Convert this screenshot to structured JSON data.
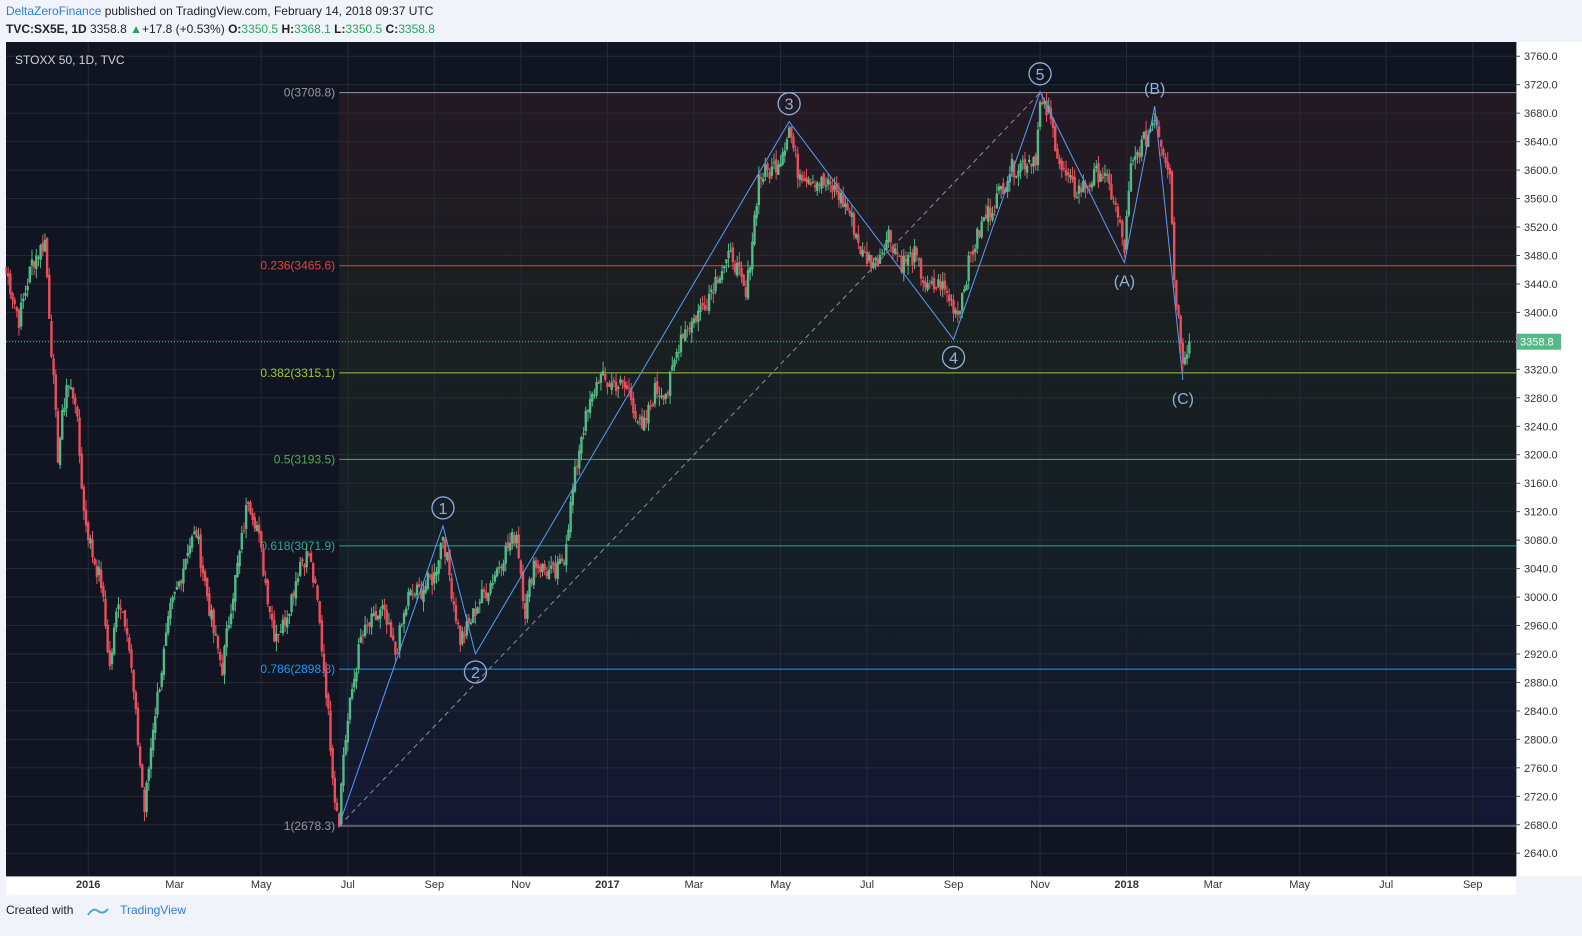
{
  "header": {
    "author": "DeltaZeroFinance",
    "published_text": "published on TradingView.com, February 14, 2018 09:37 UTC",
    "symbol": "TVC:SX5E, 1D",
    "last": "3358.8",
    "change": "+17.8 (+0.53%)",
    "o_label": "O:",
    "o": "3350.5",
    "h_label": "H:",
    "h": "3368.1",
    "l_label": "L:",
    "l": "3350.5",
    "c_label": "C:",
    "c": "3358.8"
  },
  "footer": {
    "created_with": "Created with",
    "brand": "TradingView"
  },
  "chart_data": {
    "type": "line",
    "title": "STOXX 50, 1D, TVC",
    "price_axis_ticks": [
      2640,
      2680,
      2720,
      2760,
      2800,
      2840,
      2880,
      2920,
      2960,
      3000,
      3040,
      3080,
      3120,
      3160,
      3200,
      3240,
      3280,
      3320,
      3360,
      3400,
      3440,
      3480,
      3520,
      3560,
      3600,
      3640,
      3680,
      3720,
      3760
    ],
    "ylim": [
      2608,
      3780
    ],
    "time_axis_labels": [
      {
        "label": "2016",
        "t": 0.0
      },
      {
        "label": "Mar",
        "t": 2.0
      },
      {
        "label": "May",
        "t": 4.0
      },
      {
        "label": "Jul",
        "t": 6.0
      },
      {
        "label": "Sep",
        "t": 8.0
      },
      {
        "label": "Nov",
        "t": 10.0
      },
      {
        "label": "2017",
        "t": 12.0
      },
      {
        "label": "Mar",
        "t": 14.0
      },
      {
        "label": "May",
        "t": 16.0
      },
      {
        "label": "Jul",
        "t": 18.0
      },
      {
        "label": "Sep",
        "t": 20.0
      },
      {
        "label": "Nov",
        "t": 22.0
      },
      {
        "label": "2018",
        "t": 24.0
      },
      {
        "label": "Mar",
        "t": 26.0
      },
      {
        "label": "May",
        "t": 28.0
      },
      {
        "label": "Jul",
        "t": 30.0
      },
      {
        "label": "Sep",
        "t": 32.0
      }
    ],
    "xlim": [
      -1.9,
      33.0
    ],
    "last_price": {
      "value": 3358.8,
      "label": "3358.8"
    },
    "fib_levels": [
      {
        "ratio": "0",
        "value": 3708.8,
        "label": "0(3708.8)",
        "color": "#9598a1"
      },
      {
        "ratio": "0.236",
        "value": 3465.6,
        "label": "0.236(3465.6)",
        "color": "#e0443e"
      },
      {
        "ratio": "0.382",
        "value": 3315.1,
        "label": "0.382(3315.1)",
        "color": "#9cc93f"
      },
      {
        "ratio": "0.5",
        "value": 3193.5,
        "label": "0.5(3193.5)",
        "color": "#4caf50"
      },
      {
        "ratio": "0.618",
        "value": 3071.9,
        "label": "0.618(3071.9)",
        "color": "#22ab94"
      },
      {
        "ratio": "0.786",
        "value": 2898.8,
        "label": "0.786(2898.8)",
        "color": "#2196f3"
      },
      {
        "ratio": "1",
        "value": 2678.3,
        "label": "1(2678.3)",
        "color": "#9598a1"
      }
    ],
    "fib_start_t": 5.8,
    "wave_points": [
      {
        "label": "1",
        "t": 8.2,
        "value": 3100,
        "circled": true,
        "pos": "above"
      },
      {
        "label": "2",
        "t": 8.95,
        "value": 2920,
        "circled": true,
        "pos": "below"
      },
      {
        "label": "3",
        "t": 16.2,
        "value": 3668,
        "circled": true,
        "pos": "above"
      },
      {
        "label": "4",
        "t": 20.0,
        "value": 3362,
        "circled": true,
        "pos": "below"
      },
      {
        "label": "5",
        "t": 22.0,
        "value": 3710,
        "circled": true,
        "pos": "above"
      },
      {
        "label": "(A)",
        "t": 23.95,
        "value": 3470,
        "circled": false,
        "pos": "below"
      },
      {
        "label": "(B)",
        "t": 24.65,
        "value": 3690,
        "circled": false,
        "pos": "above"
      },
      {
        "label": "(C)",
        "t": 25.3,
        "value": 3305,
        "circled": false,
        "pos": "below"
      }
    ],
    "wave_start": {
      "t": 5.8,
      "value": 2680
    },
    "close_path": [
      [
        -1.9,
        3460
      ],
      [
        -1.6,
        3390
      ],
      [
        -1.3,
        3470
      ],
      [
        -1.0,
        3500
      ],
      [
        -0.9,
        3400
      ],
      [
        -0.7,
        3200
      ],
      [
        -0.5,
        3300
      ],
      [
        -0.3,
        3280
      ],
      [
        -0.1,
        3120
      ],
      [
        0.1,
        3060
      ],
      [
        0.3,
        3020
      ],
      [
        0.5,
        2900
      ],
      [
        0.7,
        3000
      ],
      [
        0.9,
        2960
      ],
      [
        1.1,
        2830
      ],
      [
        1.3,
        2700
      ],
      [
        1.5,
        2820
      ],
      [
        1.7,
        2900
      ],
      [
        1.9,
        2980
      ],
      [
        2.1,
        3020
      ],
      [
        2.3,
        3070
      ],
      [
        2.5,
        3090
      ],
      [
        2.7,
        3020
      ],
      [
        2.9,
        2950
      ],
      [
        3.1,
        2900
      ],
      [
        3.3,
        2990
      ],
      [
        3.5,
        3060
      ],
      [
        3.7,
        3140
      ],
      [
        3.9,
        3100
      ],
      [
        4.1,
        3020
      ],
      [
        4.3,
        2950
      ],
      [
        4.5,
        2960
      ],
      [
        4.7,
        3000
      ],
      [
        4.9,
        3050
      ],
      [
        5.1,
        3060
      ],
      [
        5.3,
        2990
      ],
      [
        5.5,
        2870
      ],
      [
        5.7,
        2720
      ],
      [
        5.8,
        2690
      ],
      [
        5.9,
        2780
      ],
      [
        6.1,
        2870
      ],
      [
        6.3,
        2940
      ],
      [
        6.5,
        2960
      ],
      [
        6.8,
        2980
      ],
      [
        7.1,
        2920
      ],
      [
        7.4,
        3000
      ],
      [
        7.7,
        3010
      ],
      [
        8.0,
        3030
      ],
      [
        8.2,
        3090
      ],
      [
        8.4,
        3010
      ],
      [
        8.6,
        2940
      ],
      [
        8.8,
        2960
      ],
      [
        9.0,
        2990
      ],
      [
        9.3,
        3020
      ],
      [
        9.6,
        3060
      ],
      [
        9.9,
        3090
      ],
      [
        10.1,
        2980
      ],
      [
        10.3,
        3050
      ],
      [
        10.5,
        3040
      ],
      [
        10.8,
        3030
      ],
      [
        11.0,
        3060
      ],
      [
        11.2,
        3150
      ],
      [
        11.4,
        3230
      ],
      [
        11.6,
        3270
      ],
      [
        11.8,
        3310
      ],
      [
        12.0,
        3300
      ],
      [
        12.2,
        3300
      ],
      [
        12.5,
        3290
      ],
      [
        12.8,
        3230
      ],
      [
        13.1,
        3290
      ],
      [
        13.4,
        3290
      ],
      [
        13.7,
        3370
      ],
      [
        14.0,
        3390
      ],
      [
        14.3,
        3420
      ],
      [
        14.6,
        3460
      ],
      [
        14.9,
        3480
      ],
      [
        15.2,
        3420
      ],
      [
        15.5,
        3590
      ],
      [
        15.8,
        3600
      ],
      [
        16.0,
        3620
      ],
      [
        16.2,
        3660
      ],
      [
        16.4,
        3600
      ],
      [
        16.7,
        3590
      ],
      [
        17.0,
        3580
      ],
      [
        17.3,
        3570
      ],
      [
        17.6,
        3540
      ],
      [
        17.9,
        3480
      ],
      [
        18.2,
        3470
      ],
      [
        18.5,
        3510
      ],
      [
        18.8,
        3470
      ],
      [
        19.1,
        3480
      ],
      [
        19.4,
        3430
      ],
      [
        19.7,
        3440
      ],
      [
        19.9,
        3420
      ],
      [
        20.1,
        3400
      ],
      [
        20.4,
        3480
      ],
      [
        20.7,
        3530
      ],
      [
        21.0,
        3560
      ],
      [
        21.3,
        3600
      ],
      [
        21.6,
        3610
      ],
      [
        21.9,
        3620
      ],
      [
        22.0,
        3690
      ],
      [
        22.2,
        3680
      ],
      [
        22.5,
        3600
      ],
      [
        22.8,
        3570
      ],
      [
        23.1,
        3580
      ],
      [
        23.4,
        3600
      ],
      [
        23.7,
        3560
      ],
      [
        23.95,
        3490
      ],
      [
        24.1,
        3600
      ],
      [
        24.3,
        3630
      ],
      [
        24.5,
        3650
      ],
      [
        24.65,
        3680
      ],
      [
        24.8,
        3640
      ],
      [
        25.0,
        3600
      ],
      [
        25.1,
        3450
      ],
      [
        25.2,
        3390
      ],
      [
        25.3,
        3340
      ],
      [
        25.45,
        3358.8
      ]
    ]
  },
  "colors": {
    "bull": "#53b987",
    "bear": "#eb4d5c",
    "wave": "#5b9cf6",
    "label": "#8fb0dc",
    "grid": "#262a36",
    "bg": "#111521"
  }
}
